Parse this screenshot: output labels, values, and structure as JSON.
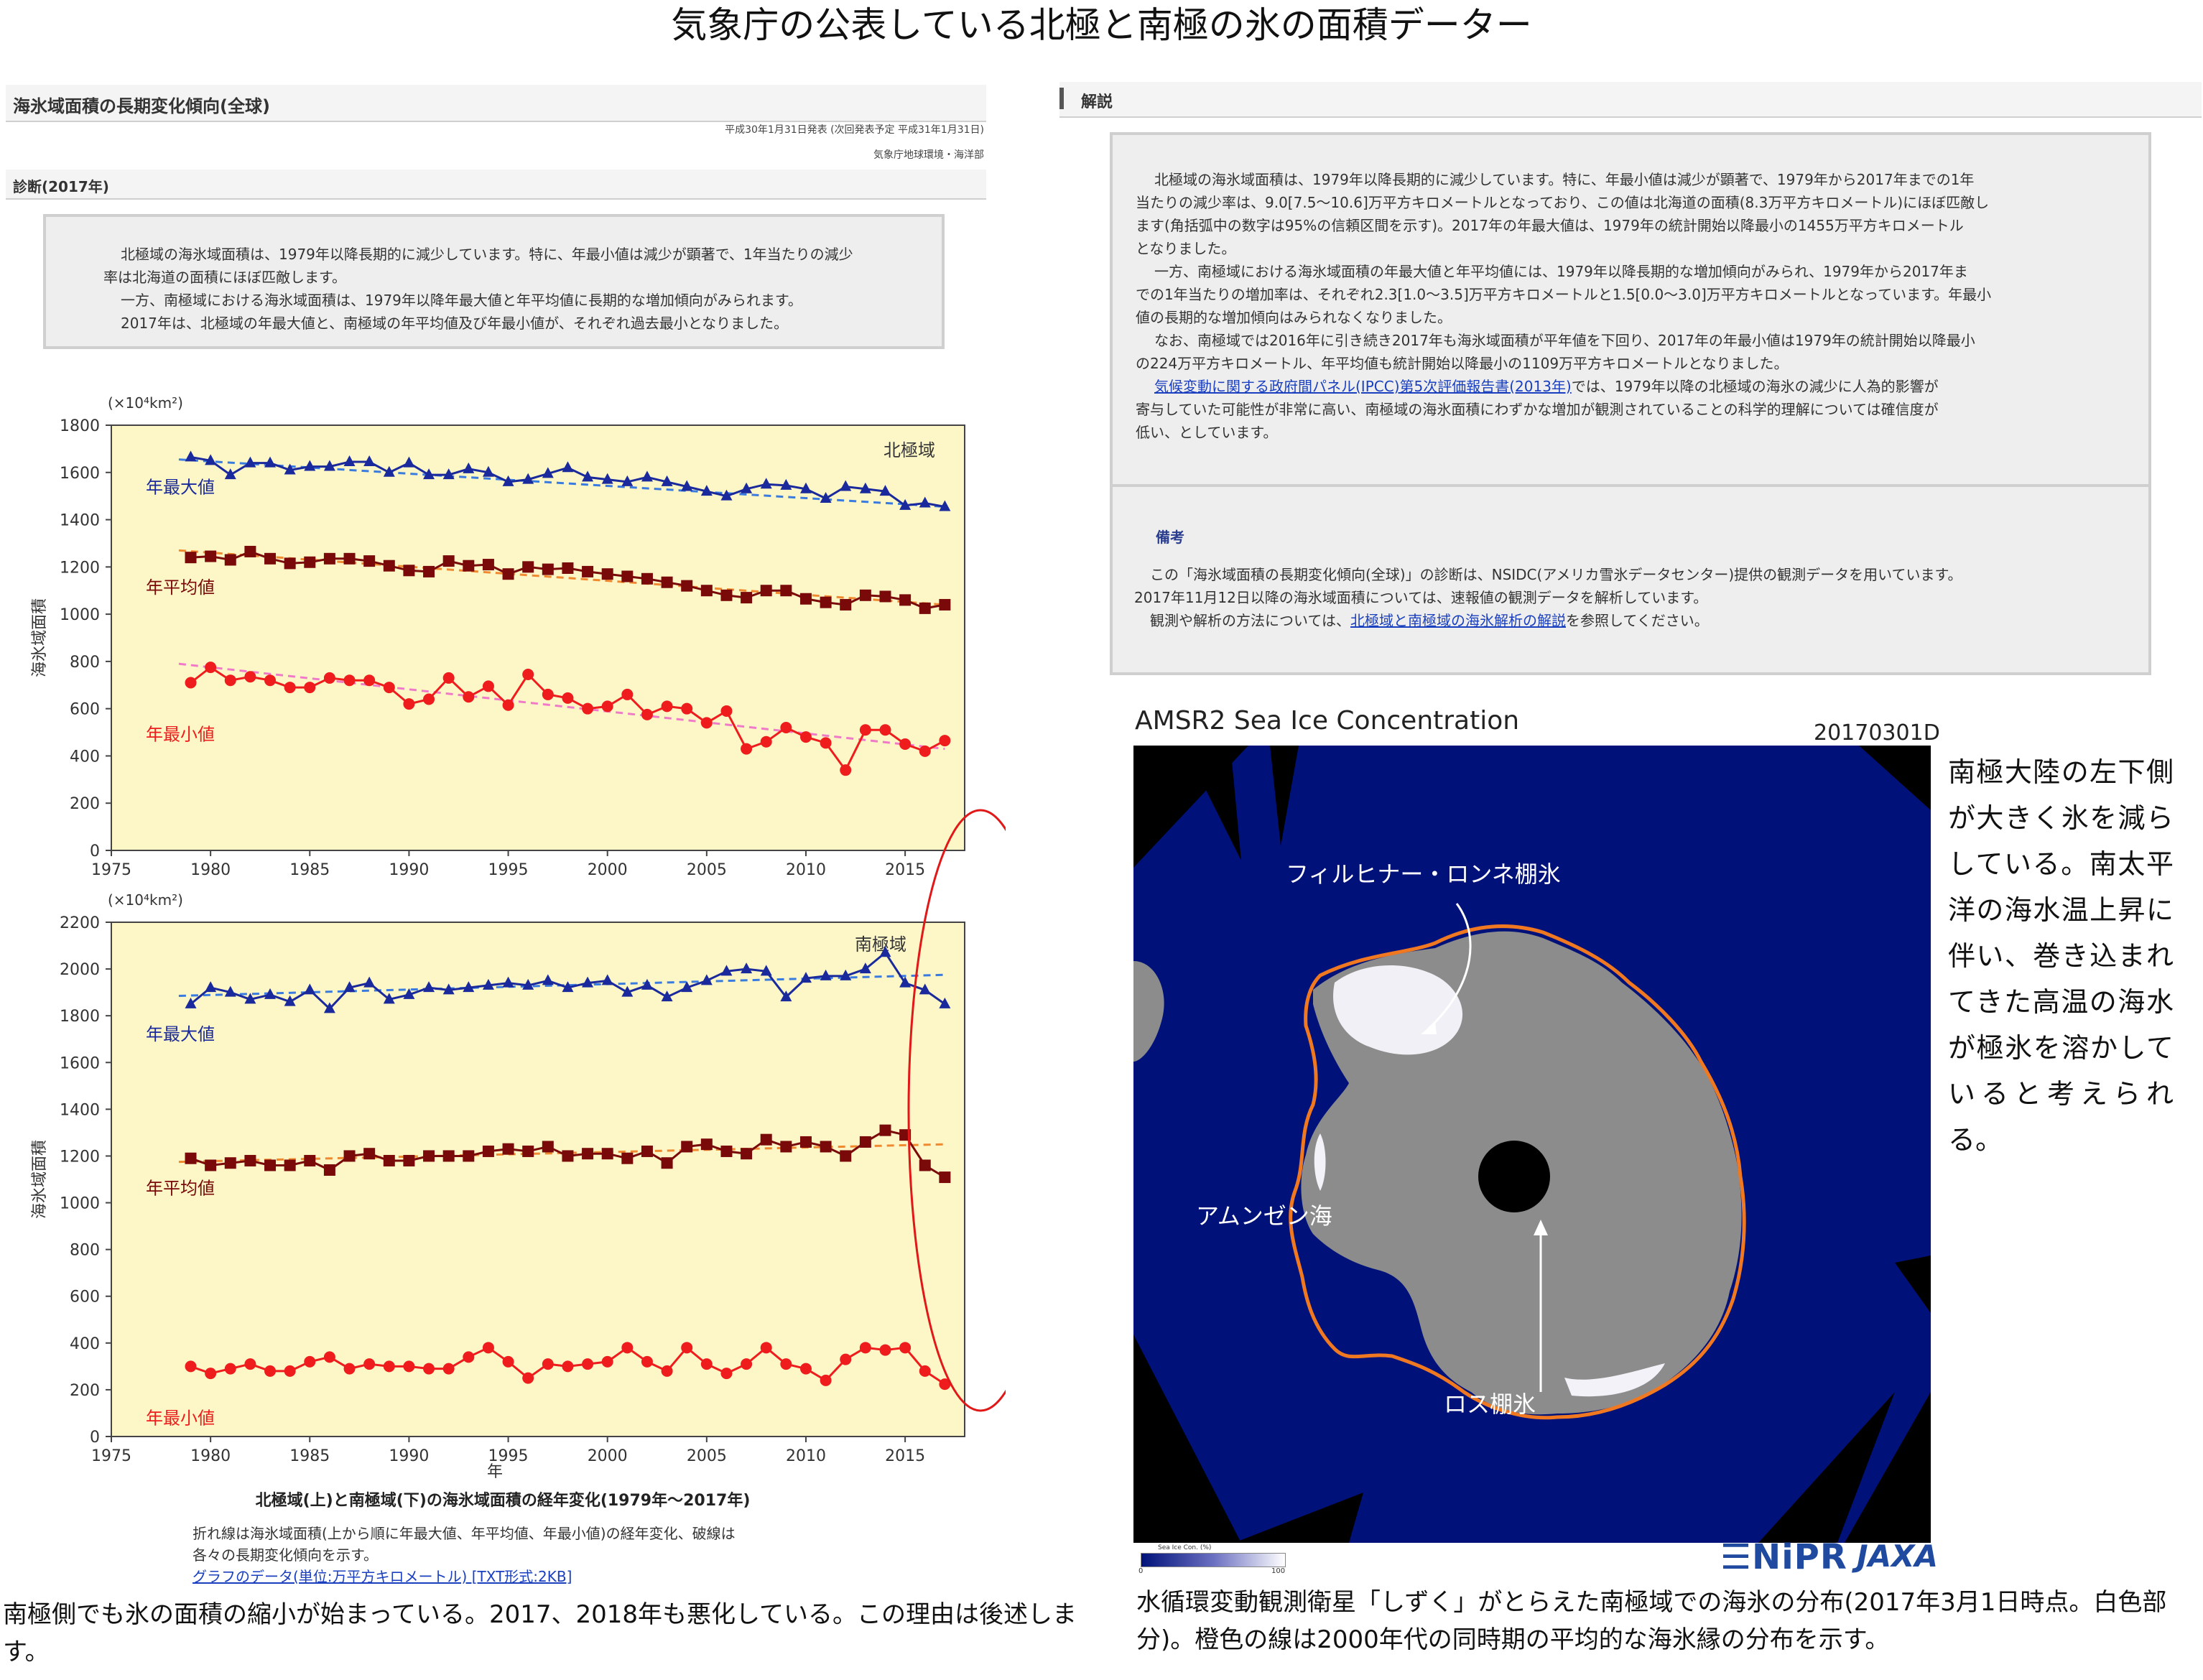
{
  "page_title": "気象庁の公表している北極と南極の氷の面積データー",
  "left_panel": {
    "title": "海氷域面積の長期変化傾向(全球)",
    "announce_line": "平成30年1月31日発表 (次回発表予定 平成31年1月31日)",
    "dept": "気象庁地球環境・海洋部",
    "diag_header": "診断(2017年)",
    "diag_lines": [
      "北極域の海氷域面積は、1979年以降長期的に減少しています。特に、年最小値は減少が顕著で、1年当たりの減少",
      "率は北海道の面積にほぼ匹敵します。",
      "一方、南極域における海氷域面積は、1979年以降年最大値と年平均値に長期的な増加傾向がみられます。",
      "2017年は、北極域の年最大値と、南極域の年平均値及び年最小値が、それぞれ過去最小となりました。"
    ],
    "chart_caption": "北極域(上)と南極域(下)の海氷域面積の経年変化(1979年～2017年)",
    "note_lines": [
      "折れ線は海氷域面積(上から順に年最大値、年平均値、年最小値)の経年変化、破線は",
      "各々の長期変化傾向を示す。"
    ],
    "data_link": "グラフのデータ(単位:万平方キロメートル) [TXT形式:2KB]",
    "bottom_caption": "南極側でも氷の面積の縮小が始まっている。2017、2018年も悪化している。この理由は後述します。"
  },
  "right_panel": {
    "header": "解説",
    "lines": [
      "北極域の海氷域面積は、1979年以降長期的に減少しています。特に、年最小値は減少が顕著で、1979年から2017年までの1年",
      "当たりの減少率は、9.0[7.5～10.6]万平方キロメートルとなっており、この値は北海道の面積(8.3万平方キロメートル)にほぼ匹敵し",
      "ます(角括弧中の数字は95%の信頼区間を示す)。2017年の年最大値は、1979年の統計開始以降最小の1455万平方キロメートル",
      "となりました。",
      "一方、南極域における海氷域面積の年最大値と年平均値には、1979年以降長期的な増加傾向がみられ、1979年から2017年ま",
      "での1年当たりの増加率は、それぞれ2.3[1.0～3.5]万平方キロメートルと1.5[0.0～3.0]万平方キロメートルとなっています。年最小",
      "値の長期的な増加傾向はみられなくなりました。",
      "なお、南極域では2016年に引き続き2017年も海氷域面積が平年値を下回り、2017年の年最小値は1979年の統計開始以降最小",
      "の224万平方キロメートル、年平均値も統計開始以降最小の1109万平方キロメートルとなりました。"
    ],
    "ipcc_link": "気候変動に関する政府間パネル(IPCC)第5次評価報告書(2013年)",
    "ipcc_rest_1": "では、1979年以降の北極域の海氷の減少に人為的影響が",
    "ipcc_rest_2": "寄与していた可能性が非常に高い、南極域の海氷面積にわずかな増加が観測されていることの科学的理解については確信度が",
    "ipcc_rest_3": "低い、としています。",
    "remarks_header": "備考",
    "remarks_1": "この「海氷域面積の長期変化傾向(全球)」の診断は、NSIDC(アメリカ雪氷データセンター)提供の観測データを用いています。",
    "remarks_2": "2017年11月12日以降の海氷域面積については、速報値の観測データを解析しています。",
    "remarks_3_pre": "観測や解析の方法については、",
    "remarks_3_link": "北極域と南極域の海氷解析の解説",
    "remarks_3_post": "を参照してください。",
    "map_title": "AMSR2 Sea Ice Concentration",
    "map_date": "20170301D",
    "label_filchner": "フィルヒナー・ロンネ棚氷",
    "label_amundsen": "アムンゼン海",
    "label_ross": "ロス棚氷",
    "colorbar_label": "Sea Ice Con. (%)",
    "colorbar_min": "0",
    "colorbar_max": "100",
    "logo_nipr": "NiPR",
    "logo_jaxa": "JAXA",
    "side_text": "南極大陸の左下側が大きく氷を減らしている。南太平洋の海水温上昇に伴い、巻き込まれてきた高温の海水が極氷を溶かしていると考えられる。",
    "map_caption": "水循環変動観測衛星「しずく」がとらえた南極域での海氷の分布(2017年3月1日時点。白色部分)。橙色の線は2000年代の同時期の平均的な海氷縁の分布を示す。"
  },
  "colors": {
    "max": "#1a2a9c",
    "mean": "#7a0a0a",
    "min": "#ee1c1c",
    "plot_bg": "#fdf7c8",
    "ocean": "#00127a",
    "land": "#8c8c8c",
    "edge": "#f07820",
    "circle": "#e01818"
  },
  "chart_data": [
    {
      "type": "line",
      "region_label": "北極域",
      "unit_label": "(×10⁴km²)",
      "ylabel": "海氷域面積",
      "xlim": [
        1975,
        2018
      ],
      "ylim": [
        0,
        1800
      ],
      "yticks": [
        0,
        200,
        400,
        600,
        800,
        1000,
        1200,
        1400,
        1600,
        1800
      ],
      "xticks": [
        1975,
        1980,
        1985,
        1990,
        1995,
        2000,
        2005,
        2010,
        2015
      ],
      "x": [
        1979,
        1980,
        1981,
        1982,
        1983,
        1984,
        1985,
        1986,
        1987,
        1988,
        1989,
        1990,
        1991,
        1992,
        1993,
        1994,
        1995,
        1996,
        1997,
        1998,
        1999,
        2000,
        2001,
        2002,
        2003,
        2004,
        2005,
        2006,
        2007,
        2008,
        2009,
        2010,
        2011,
        2012,
        2013,
        2014,
        2015,
        2016,
        2017
      ],
      "series": [
        {
          "name": "年最大値",
          "key": "max",
          "values": [
            1665,
            1650,
            1590,
            1640,
            1640,
            1610,
            1625,
            1625,
            1645,
            1645,
            1600,
            1640,
            1590,
            1590,
            1615,
            1600,
            1560,
            1570,
            1595,
            1620,
            1580,
            1570,
            1560,
            1580,
            1560,
            1540,
            1520,
            1500,
            1530,
            1550,
            1545,
            1530,
            1490,
            1540,
            1530,
            1520,
            1460,
            1470,
            1455
          ],
          "trend": [
            1655,
            1455
          ]
        },
        {
          "name": "年平均値",
          "key": "mean",
          "values": [
            1240,
            1245,
            1230,
            1265,
            1235,
            1215,
            1220,
            1235,
            1235,
            1225,
            1205,
            1185,
            1180,
            1225,
            1205,
            1210,
            1170,
            1200,
            1190,
            1195,
            1180,
            1170,
            1160,
            1150,
            1135,
            1120,
            1100,
            1080,
            1070,
            1100,
            1100,
            1065,
            1050,
            1040,
            1080,
            1075,
            1060,
            1025,
            1040
          ],
          "trend": [
            1270,
            1040
          ]
        },
        {
          "name": "年最小値",
          "key": "min",
          "values": [
            710,
            775,
            720,
            735,
            720,
            690,
            690,
            730,
            720,
            720,
            690,
            620,
            640,
            730,
            650,
            695,
            615,
            745,
            660,
            645,
            600,
            610,
            660,
            575,
            610,
            600,
            540,
            590,
            430,
            460,
            520,
            480,
            455,
            340,
            510,
            510,
            450,
            420,
            465
          ],
          "trend": [
            790,
            430
          ]
        }
      ]
    },
    {
      "type": "line",
      "region_label": "南極域",
      "unit_label": "(×10⁴km²)",
      "ylabel": "海氷域面積",
      "xlabel": "年",
      "xlim": [
        1975,
        2018
      ],
      "ylim": [
        0,
        2200
      ],
      "yticks": [
        0,
        200,
        400,
        600,
        800,
        1000,
        1200,
        1400,
        1600,
        1800,
        2000,
        2200
      ],
      "xticks": [
        1975,
        1980,
        1985,
        1990,
        1995,
        2000,
        2005,
        2010,
        2015
      ],
      "x": [
        1979,
        1980,
        1981,
        1982,
        1983,
        1984,
        1985,
        1986,
        1987,
        1988,
        1989,
        1990,
        1991,
        1992,
        1993,
        1994,
        1995,
        1996,
        1997,
        1998,
        1999,
        2000,
        2001,
        2002,
        2003,
        2004,
        2005,
        2006,
        2007,
        2008,
        2009,
        2010,
        2011,
        2012,
        2013,
        2014,
        2015,
        2016,
        2017
      ],
      "series": [
        {
          "name": "年最大値",
          "key": "max",
          "values": [
            1850,
            1920,
            1900,
            1870,
            1890,
            1860,
            1910,
            1830,
            1920,
            1940,
            1870,
            1890,
            1920,
            1910,
            1920,
            1930,
            1940,
            1930,
            1950,
            1920,
            1940,
            1950,
            1900,
            1930,
            1880,
            1920,
            1950,
            1990,
            2000,
            1990,
            1880,
            1960,
            1970,
            1970,
            2000,
            2070,
            1940,
            1910,
            1850
          ],
          "trend": [
            1885,
            1975
          ]
        },
        {
          "name": "年平均値",
          "key": "mean",
          "values": [
            1190,
            1160,
            1170,
            1180,
            1160,
            1160,
            1180,
            1140,
            1200,
            1210,
            1180,
            1180,
            1200,
            1200,
            1200,
            1220,
            1230,
            1220,
            1240,
            1200,
            1210,
            1210,
            1190,
            1220,
            1170,
            1240,
            1250,
            1220,
            1210,
            1270,
            1240,
            1260,
            1240,
            1200,
            1260,
            1310,
            1290,
            1160,
            1109
          ],
          "trend": [
            1175,
            1250
          ]
        },
        {
          "name": "年最小値",
          "key": "min",
          "values": [
            300,
            270,
            290,
            310,
            280,
            280,
            320,
            340,
            290,
            310,
            300,
            300,
            290,
            290,
            340,
            380,
            320,
            250,
            310,
            300,
            310,
            320,
            380,
            320,
            280,
            380,
            310,
            270,
            310,
            380,
            310,
            290,
            240,
            330,
            380,
            370,
            380,
            280,
            224
          ],
          "trend": []
        }
      ]
    }
  ]
}
